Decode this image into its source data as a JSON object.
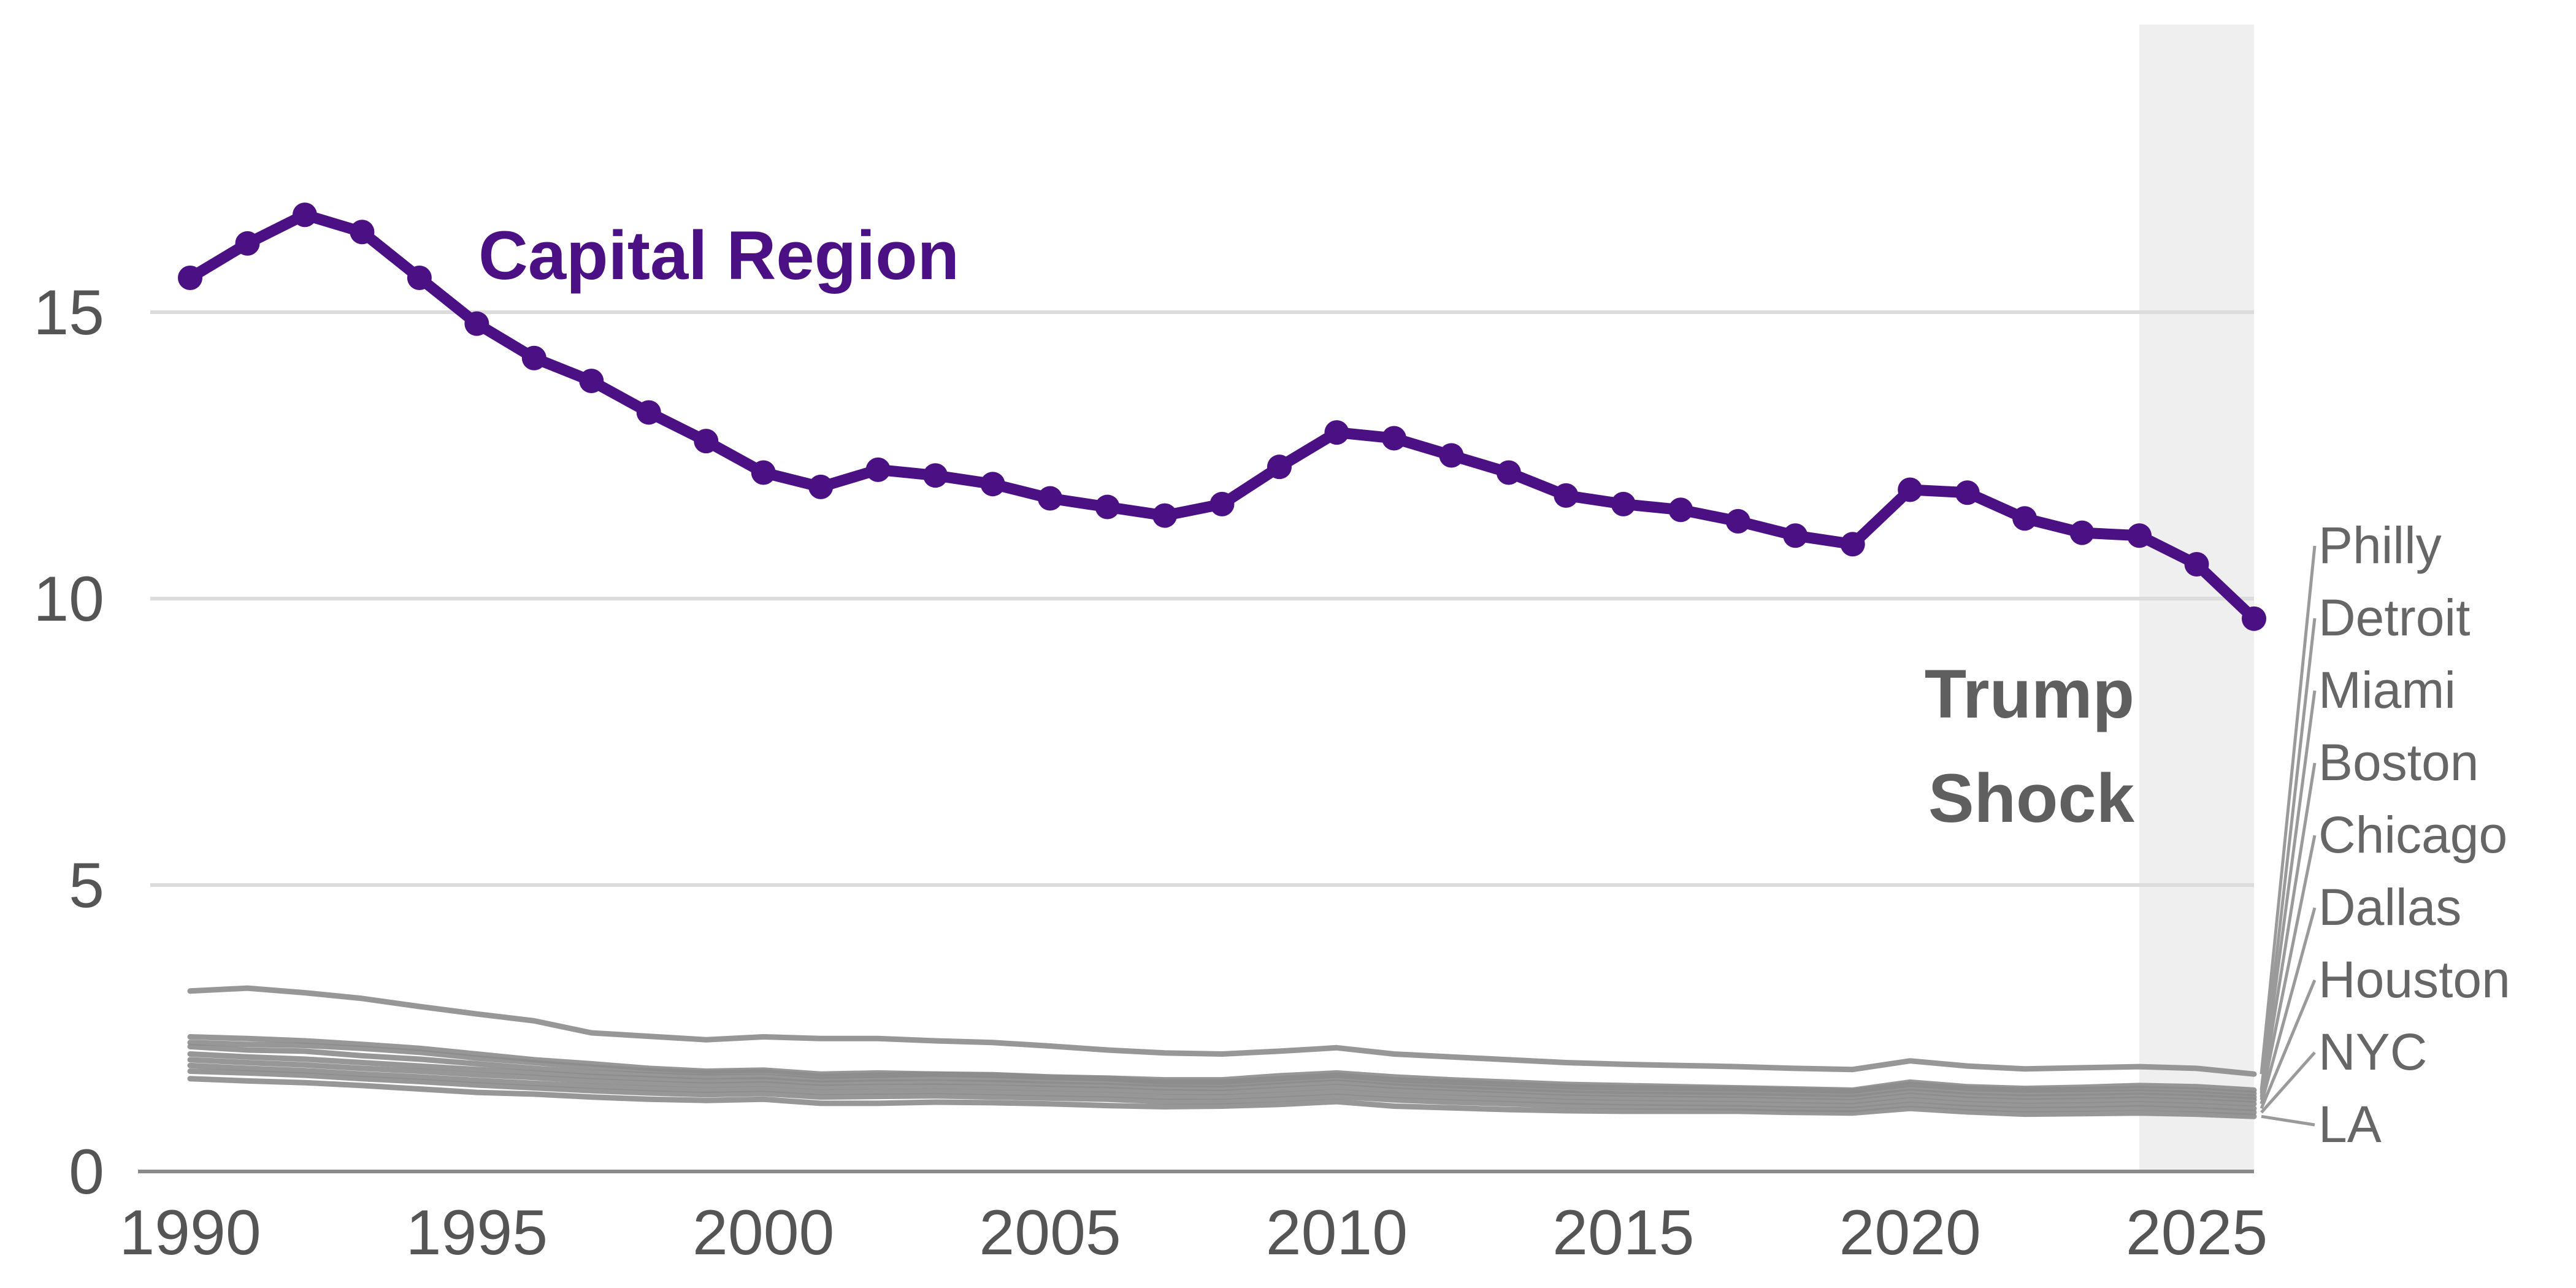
{
  "chart_data": {
    "type": "line",
    "title": "",
    "xlabel": "",
    "ylabel": "",
    "xlim": [
      1990,
      2026
    ],
    "ylim": [
      0,
      20
    ],
    "x_ticks": [
      1990,
      1995,
      2000,
      2005,
      2010,
      2015,
      2020,
      2025
    ],
    "y_ticks": [
      0,
      5,
      10,
      15
    ],
    "grid": "horizontal",
    "x": [
      1990,
      1991,
      1992,
      1993,
      1994,
      1995,
      1996,
      1997,
      1998,
      1999,
      2000,
      2001,
      2002,
      2003,
      2004,
      2005,
      2006,
      2007,
      2008,
      2009,
      2010,
      2011,
      2012,
      2013,
      2014,
      2015,
      2016,
      2017,
      2018,
      2019,
      2020,
      2021,
      2022,
      2023,
      2024,
      2025,
      2026
    ],
    "highlight": {
      "name": "Capital Region",
      "color": "#4b1084",
      "values": [
        15.6,
        16.2,
        16.7,
        16.4,
        15.6,
        14.8,
        14.2,
        13.8,
        13.25,
        12.75,
        12.2,
        11.95,
        12.25,
        12.15,
        12.0,
        11.75,
        11.6,
        11.45,
        11.65,
        12.3,
        12.9,
        12.8,
        12.5,
        12.2,
        11.8,
        11.65,
        11.55,
        11.35,
        11.1,
        10.95,
        11.9,
        11.85,
        11.4,
        11.15,
        11.1,
        10.6,
        9.65
      ]
    },
    "series": [
      {
        "name": "Philly",
        "values": [
          3.15,
          3.2,
          3.12,
          3.02,
          2.88,
          2.75,
          2.63,
          2.42,
          2.36,
          2.3,
          2.35,
          2.32,
          2.32,
          2.28,
          2.25,
          2.19,
          2.12,
          2.07,
          2.05,
          2.1,
          2.16,
          2.05,
          2.0,
          1.95,
          1.9,
          1.87,
          1.85,
          1.83,
          1.8,
          1.78,
          1.93,
          1.84,
          1.79,
          1.81,
          1.83,
          1.8,
          1.7
        ]
      },
      {
        "name": "Detroit",
        "values": [
          2.35,
          2.32,
          2.28,
          2.22,
          2.15,
          2.05,
          1.95,
          1.88,
          1.8,
          1.75,
          1.77,
          1.7,
          1.72,
          1.7,
          1.69,
          1.65,
          1.63,
          1.6,
          1.6,
          1.67,
          1.72,
          1.65,
          1.6,
          1.56,
          1.52,
          1.5,
          1.48,
          1.46,
          1.44,
          1.42,
          1.56,
          1.48,
          1.45,
          1.47,
          1.5,
          1.48,
          1.42
        ]
      },
      {
        "name": "Miami",
        "values": [
          2.25,
          2.22,
          2.2,
          2.15,
          2.08,
          1.98,
          1.9,
          1.82,
          1.76,
          1.72,
          1.74,
          1.66,
          1.68,
          1.7,
          1.68,
          1.64,
          1.62,
          1.56,
          1.56,
          1.62,
          1.68,
          1.6,
          1.56,
          1.52,
          1.48,
          1.46,
          1.45,
          1.44,
          1.42,
          1.4,
          1.52,
          1.45,
          1.42,
          1.43,
          1.45,
          1.42,
          1.36
        ]
      },
      {
        "name": "Boston",
        "values": [
          2.18,
          2.12,
          2.1,
          2.02,
          1.96,
          1.88,
          1.8,
          1.73,
          1.69,
          1.65,
          1.66,
          1.6,
          1.62,
          1.63,
          1.61,
          1.58,
          1.56,
          1.52,
          1.51,
          1.57,
          1.63,
          1.55,
          1.5,
          1.46,
          1.42,
          1.4,
          1.39,
          1.38,
          1.36,
          1.34,
          1.46,
          1.39,
          1.36,
          1.37,
          1.39,
          1.36,
          1.3
        ]
      },
      {
        "name": "Chicago",
        "values": [
          2.05,
          2.0,
          1.96,
          1.9,
          1.84,
          1.78,
          1.72,
          1.66,
          1.62,
          1.58,
          1.6,
          1.54,
          1.56,
          1.56,
          1.55,
          1.52,
          1.5,
          1.46,
          1.45,
          1.51,
          1.56,
          1.49,
          1.45,
          1.41,
          1.37,
          1.35,
          1.34,
          1.33,
          1.31,
          1.29,
          1.4,
          1.33,
          1.3,
          1.31,
          1.33,
          1.3,
          1.25
        ]
      },
      {
        "name": "Dallas",
        "values": [
          1.95,
          1.9,
          1.86,
          1.8,
          1.75,
          1.69,
          1.64,
          1.58,
          1.54,
          1.51,
          1.53,
          1.47,
          1.48,
          1.49,
          1.47,
          1.45,
          1.43,
          1.39,
          1.38,
          1.43,
          1.48,
          1.42,
          1.38,
          1.34,
          1.3,
          1.28,
          1.27,
          1.26,
          1.24,
          1.22,
          1.33,
          1.26,
          1.23,
          1.24,
          1.26,
          1.23,
          1.18
        ]
      },
      {
        "name": "Houston",
        "values": [
          1.85,
          1.8,
          1.76,
          1.7,
          1.65,
          1.59,
          1.54,
          1.49,
          1.45,
          1.42,
          1.44,
          1.38,
          1.39,
          1.4,
          1.38,
          1.36,
          1.34,
          1.3,
          1.3,
          1.34,
          1.39,
          1.33,
          1.29,
          1.26,
          1.22,
          1.2,
          1.19,
          1.18,
          1.16,
          1.15,
          1.25,
          1.18,
          1.15,
          1.16,
          1.18,
          1.15,
          1.1
        ]
      },
      {
        "name": "NYC",
        "values": [
          1.75,
          1.72,
          1.68,
          1.62,
          1.57,
          1.51,
          1.46,
          1.41,
          1.37,
          1.34,
          1.36,
          1.3,
          1.31,
          1.32,
          1.3,
          1.28,
          1.26,
          1.22,
          1.22,
          1.26,
          1.31,
          1.25,
          1.21,
          1.18,
          1.15,
          1.13,
          1.12,
          1.11,
          1.09,
          1.08,
          1.17,
          1.11,
          1.08,
          1.09,
          1.11,
          1.08,
          1.03
        ]
      },
      {
        "name": "LA",
        "values": [
          1.62,
          1.58,
          1.55,
          1.5,
          1.44,
          1.38,
          1.35,
          1.3,
          1.26,
          1.24,
          1.26,
          1.19,
          1.19,
          1.21,
          1.2,
          1.18,
          1.15,
          1.13,
          1.14,
          1.17,
          1.22,
          1.14,
          1.11,
          1.08,
          1.06,
          1.05,
          1.05,
          1.05,
          1.03,
          1.02,
          1.1,
          1.04,
          1.0,
          1.01,
          1.02,
          1.0,
          0.96
        ]
      }
    ],
    "background_series_color": "#8c8c8c",
    "city_label_color": "#666666",
    "annotations": [
      {
        "text": "Trump",
        "color": "#5f5f5f"
      },
      {
        "text": "Shock",
        "color": "#5f5f5f"
      }
    ],
    "shaded_region": {
      "x_start": 2024,
      "x_end": 2026,
      "color": "#efefef"
    }
  }
}
